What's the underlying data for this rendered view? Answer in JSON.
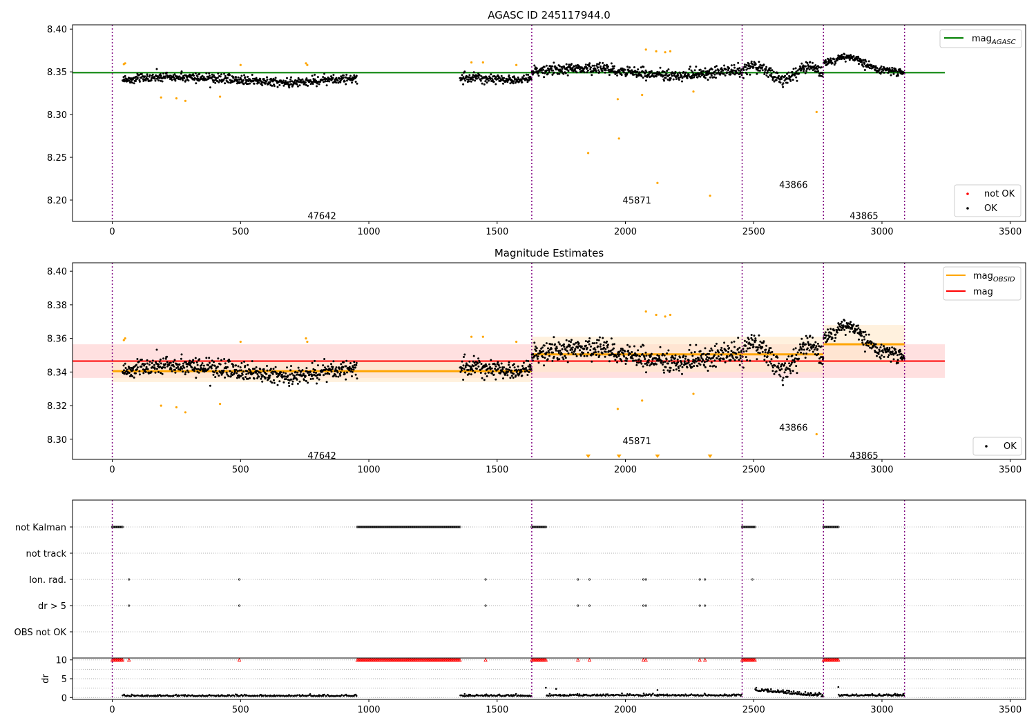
{
  "colors": {
    "ok": "#000000",
    "outlier": "#ffa500",
    "not_ok": "#ff0000",
    "agasc_line": "#008000",
    "obsid_line": "#ffa500",
    "mag_line": "#ff0000",
    "mag_band": "#ffcccc",
    "obsid_band": "#ffe8c8",
    "obs_boundary": "#800080"
  },
  "chart_data": [
    {
      "type": "scatter",
      "title": "AGASC ID 245117944.0",
      "xlabel": "",
      "ylabel": "",
      "xlim": [
        -155,
        3560
      ],
      "ylim": [
        8.175,
        8.405
      ],
      "xticks": [
        "0",
        "500",
        "1000",
        "1500",
        "2000",
        "2500",
        "3000",
        "3500"
      ],
      "yticks": [
        "8.20",
        "8.25",
        "8.30",
        "8.35",
        "8.40"
      ],
      "grid": false,
      "legend_upper": {
        "placement": "top-right",
        "entries": [
          "mag_AGASC"
        ],
        "text": "mag",
        "subscript": "AGASC"
      },
      "legend_lower": {
        "placement": "bottom-right",
        "entries": [
          "not OK",
          "OK"
        ]
      },
      "agasc_mag": {
        "value": 8.349,
        "x_range": [
          -155,
          3245
        ]
      },
      "obs_boundaries": [
        0,
        1635,
        2455,
        2772,
        3088
      ],
      "obsid_labels": [
        {
          "text": "47642",
          "x": 817,
          "y": 8.182
        },
        {
          "text": "45871",
          "x": 2045,
          "y": 8.2
        },
        {
          "text": "43866",
          "x": 2655,
          "y": 8.218
        },
        {
          "text": "43865",
          "x": 2930,
          "y": 8.182
        }
      ],
      "ok_segments": [
        {
          "x0": 40,
          "x1": 955,
          "n": 560,
          "base": 8.341,
          "amp": 0.003,
          "noise": 0.005
        },
        {
          "x0": 1355,
          "x1": 1635,
          "n": 170,
          "base": 8.342,
          "amp": 0.002,
          "noise": 0.005
        },
        {
          "x0": 1635,
          "x1": 2455,
          "n": 520,
          "base": 8.35,
          "amp": 0.004,
          "noise": 0.006
        },
        {
          "x0": 2455,
          "x1": 2772,
          "n": 200,
          "base": 8.349,
          "amp": 0.005,
          "noise": 0.006
        },
        {
          "x0": 2772,
          "x1": 3088,
          "n": 200,
          "base": 8.357,
          "amp": 0.012,
          "noise": 0.004
        }
      ],
      "outliers": [
        [
          45,
          8.359
        ],
        [
          50,
          8.36
        ],
        [
          190,
          8.32
        ],
        [
          250,
          8.319
        ],
        [
          285,
          8.316
        ],
        [
          420,
          8.321
        ],
        [
          500,
          8.358
        ],
        [
          755,
          8.36
        ],
        [
          760,
          8.358
        ],
        [
          1400,
          8.361
        ],
        [
          1445,
          8.361
        ],
        [
          1575,
          8.358
        ],
        [
          1855,
          8.255
        ],
        [
          1970,
          8.318
        ],
        [
          1975,
          8.272
        ],
        [
          2065,
          8.323
        ],
        [
          2080,
          8.376
        ],
        [
          2120,
          8.374
        ],
        [
          2125,
          8.22
        ],
        [
          2155,
          8.373
        ],
        [
          2175,
          8.374
        ],
        [
          2265,
          8.327
        ],
        [
          2330,
          8.205
        ],
        [
          2745,
          8.303
        ]
      ]
    },
    {
      "type": "scatter",
      "title": "Magnitude Estimates",
      "xlabel": "",
      "ylabel": "",
      "xlim": [
        -155,
        3560
      ],
      "ylim": [
        8.288,
        8.405
      ],
      "xticks": [
        "0",
        "500",
        "1000",
        "1500",
        "2000",
        "2500",
        "3000",
        "3500"
      ],
      "yticks": [
        "8.30",
        "8.32",
        "8.34",
        "8.36",
        "8.38",
        "8.40"
      ],
      "grid": false,
      "legend_upper": {
        "placement": "top-right",
        "entries": [
          {
            "text": "mag",
            "subscript": "OBSID"
          },
          {
            "text": "mag",
            "subscript": ""
          }
        ]
      },
      "legend_lower": {
        "placement": "bottom-right",
        "entries": [
          "OK"
        ]
      },
      "mag": {
        "value": 8.3465,
        "band": [
          8.3365,
          8.3565
        ],
        "x_range": [
          -155,
          3245
        ]
      },
      "mag_obsid": [
        {
          "x0": 0,
          "x1": 1635,
          "value": 8.3405,
          "band": [
            8.334,
            8.347
          ]
        },
        {
          "x0": 1635,
          "x1": 2455,
          "value": 8.3505,
          "band": [
            8.34,
            8.361
          ]
        },
        {
          "x0": 2455,
          "x1": 2772,
          "value": 8.3505,
          "band": [
            8.34,
            8.361
          ]
        },
        {
          "x0": 2772,
          "x1": 3088,
          "value": 8.3565,
          "band": [
            8.345,
            8.368
          ]
        }
      ],
      "obs_boundaries": [
        0,
        1635,
        2455,
        2772,
        3088
      ],
      "obsid_labels": [
        {
          "text": "47642",
          "x": 817,
          "y": 8.2905
        },
        {
          "text": "45871",
          "x": 2045,
          "y": 8.299
        },
        {
          "text": "43866",
          "x": 2655,
          "y": 8.307
        },
        {
          "text": "43865",
          "x": 2930,
          "y": 8.2905
        }
      ],
      "lower_limits": [
        1855,
        1975,
        2125,
        2330
      ]
    },
    {
      "type": "scatter",
      "title": "",
      "xlabel": "",
      "ylabel": "dr",
      "xlim": [
        -155,
        3560
      ],
      "xticks": [
        "0",
        "500",
        "1000",
        "1500",
        "2000",
        "2500",
        "3000",
        "3500"
      ],
      "flag_rows": [
        "not Kalman",
        "not track",
        "Ion. rad.",
        "dr > 5",
        "OBS not OK"
      ],
      "dr_ylim": [
        -0.5,
        10.5
      ],
      "dr_yticks": [
        "0",
        "5",
        "10"
      ],
      "obs_boundaries": [
        0,
        1635,
        2455,
        2772,
        3088
      ],
      "not_kalman_ranges": [
        [
          0,
          40
        ],
        [
          955,
          1355
        ],
        [
          1635,
          1690
        ],
        [
          2455,
          2505
        ],
        [
          2772,
          2830
        ]
      ],
      "ion_rad_points": [
        65,
        495,
        1455,
        1815,
        1860,
        2070,
        2080,
        2290,
        2310,
        2495
      ],
      "dr_gt5_points": [
        65,
        495,
        1455,
        1815,
        1860,
        2070,
        2080,
        2290,
        2310
      ],
      "dr_segments": [
        {
          "x0": 40,
          "x1": 955,
          "n": 240,
          "base": 0.5,
          "noise": 0.35
        },
        {
          "x0": 1355,
          "x1": 1635,
          "n": 80,
          "base": 0.5,
          "noise": 0.35
        },
        {
          "x0": 1690,
          "x1": 2455,
          "n": 220,
          "base": 0.6,
          "noise": 0.4
        },
        {
          "x0": 2505,
          "x1": 2772,
          "n": 110,
          "base": 1.2,
          "noise": 0.8
        },
        {
          "x0": 2830,
          "x1": 3088,
          "n": 80,
          "base": 0.6,
          "noise": 0.35
        }
      ]
    }
  ]
}
